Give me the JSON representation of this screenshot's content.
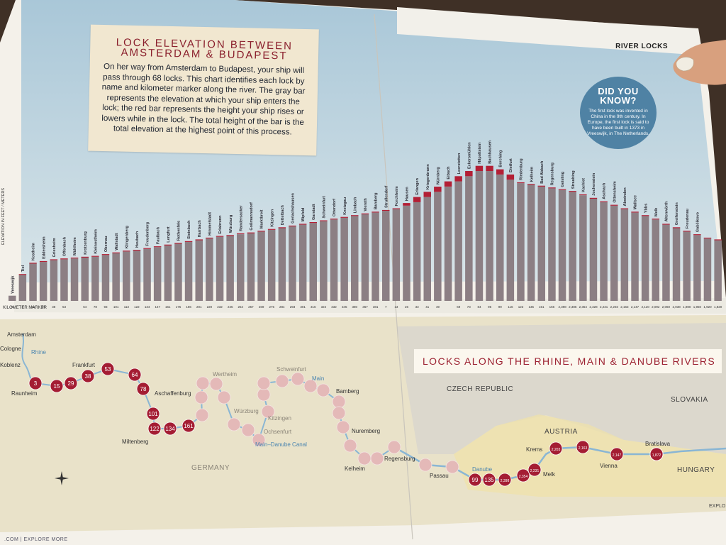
{
  "header": {
    "section_label": "RIVER LOCKS"
  },
  "intro": {
    "title": "LOCK ELEVATION BETWEEN AMSTERDAM & BUDAPEST",
    "body": "On her way from Amsterdam to Budapest, your ship will pass through 68 locks. This chart identifies each lock by name and kilometer marker along the river. The gray bar represents the elevation at which your ship enters the lock; the red bar represents the height your ship rises or lowers while in the lock. The total height of the bar is the total elevation at the highest point of this process."
  },
  "did_you_know": {
    "title": "DID YOU KNOW?",
    "body": "The first lock was invented in China in the 9th century. In Europe, the first lock is said to have been built in 1373 in Vreeswijk, in The Netherlands."
  },
  "chart_data": {
    "type": "bar",
    "title": "LOCK ELEVATION BETWEEN AMSTERDAM & BUDAPEST",
    "ylabel": "ELEVATION IN FEET / METERS",
    "xlabel": "KILOMETER MARKER",
    "series": [
      {
        "name": "gray bar",
        "color": "#8c7f84"
      },
      {
        "name": "red bar",
        "color": "#b31f35"
      }
    ],
    "locks": [
      {
        "name": "Vreeswijk",
        "km": "70",
        "entry": 6,
        "lift": 0
      },
      {
        "name": "Tiel",
        "km": "3",
        "entry": 30,
        "lift": 1
      },
      {
        "name": "Kostheim",
        "km": "15",
        "entry": 43,
        "lift": 1
      },
      {
        "name": "Eddersheim",
        "km": "29",
        "entry": 45,
        "lift": 1
      },
      {
        "name": "Griesheim",
        "km": "38",
        "entry": 47,
        "lift": 1
      },
      {
        "name": "Offenbach",
        "km": "53",
        "entry": 48,
        "lift": 1
      },
      {
        "name": "Mühlheim",
        "km": "",
        "entry": 49,
        "lift": 1
      },
      {
        "name": "Krotzenburg",
        "km": "64",
        "entry": 50,
        "lift": 1
      },
      {
        "name": "Kleinostheim",
        "km": "78",
        "entry": 51,
        "lift": 1
      },
      {
        "name": "Obernau",
        "km": "93",
        "entry": 53,
        "lift": 1
      },
      {
        "name": "Wallstadt",
        "km": "101",
        "entry": 55,
        "lift": 1
      },
      {
        "name": "Klingenberg",
        "km": "113",
        "entry": 57,
        "lift": 1
      },
      {
        "name": "Heubach",
        "km": "122",
        "entry": 58,
        "lift": 1
      },
      {
        "name": "Freudenberg",
        "km": "134",
        "entry": 60,
        "lift": 1
      },
      {
        "name": "Faulbach",
        "km": "147",
        "entry": 62,
        "lift": 1
      },
      {
        "name": "Lengfurt",
        "km": "161",
        "entry": 64,
        "lift": 1
      },
      {
        "name": "Rothenfels",
        "km": "175",
        "entry": 66,
        "lift": 1
      },
      {
        "name": "Steinbach",
        "km": "186",
        "entry": 68,
        "lift": 1
      },
      {
        "name": "Harrbach",
        "km": "201",
        "entry": 70,
        "lift": 1
      },
      {
        "name": "Himmelstadt",
        "km": "220",
        "entry": 72,
        "lift": 1
      },
      {
        "name": "Erlabrunn",
        "km": "232",
        "entry": 74,
        "lift": 1
      },
      {
        "name": "Würzburg",
        "km": "245",
        "entry": 75,
        "lift": 1
      },
      {
        "name": "Randersacker",
        "km": "254",
        "entry": 77,
        "lift": 1
      },
      {
        "name": "Goßmannsdorf",
        "km": "257",
        "entry": 78,
        "lift": 1
      },
      {
        "name": "Marktbreit",
        "km": "269",
        "entry": 80,
        "lift": 1
      },
      {
        "name": "Kitzingen",
        "km": "275",
        "entry": 82,
        "lift": 1
      },
      {
        "name": "Dettelbach",
        "km": "284",
        "entry": 84,
        "lift": 1
      },
      {
        "name": "Gerlachshausen",
        "km": "293",
        "entry": 86,
        "lift": 1
      },
      {
        "name": "Wipfeld",
        "km": "301",
        "entry": 88,
        "lift": 1
      },
      {
        "name": "Garstadt",
        "km": "316",
        "entry": 90,
        "lift": 1
      },
      {
        "name": "Schweinfurt",
        "km": "324",
        "entry": 92,
        "lift": 1
      },
      {
        "name": "Ottendorf",
        "km": "332",
        "entry": 94,
        "lift": 1
      },
      {
        "name": "Knetzgau",
        "km": "345",
        "entry": 96,
        "lift": 1
      },
      {
        "name": "Limbach",
        "km": "380",
        "entry": 98,
        "lift": 1
      },
      {
        "name": "Viereth",
        "km": "367",
        "entry": 100,
        "lift": 1
      },
      {
        "name": "Bamberg",
        "km": "381",
        "entry": 102,
        "lift": 1
      },
      {
        "name": "Strullendorf",
        "km": "7",
        "entry": 104,
        "lift": 1
      },
      {
        "name": "Forchheim",
        "km": "13",
        "entry": 106,
        "lift": 1
      },
      {
        "name": "Hausen",
        "km": "26",
        "entry": 110,
        "lift": 3
      },
      {
        "name": "Erlangen",
        "km": "33",
        "entry": 114,
        "lift": 6
      },
      {
        "name": "Kriegenbrunn",
        "km": "41",
        "entry": 120,
        "lift": 6
      },
      {
        "name": "Nürnberg",
        "km": "49",
        "entry": 126,
        "lift": 6
      },
      {
        "name": "Eibach",
        "km": "",
        "entry": 132,
        "lift": 6
      },
      {
        "name": "Leerstetten",
        "km": "69",
        "entry": 138,
        "lift": 6
      },
      {
        "name": "Eckersmühlen",
        "km": "73",
        "entry": 144,
        "lift": 6
      },
      {
        "name": "Hilpoltstein",
        "km": "84",
        "entry": 150,
        "lift": 6
      },
      {
        "name": "Bachhausen",
        "km": "95",
        "entry": 150,
        "lift": 6
      },
      {
        "name": "Berching",
        "km": "99",
        "entry": 146,
        "lift": 6
      },
      {
        "name": "Dietfurt",
        "km": "116",
        "entry": 140,
        "lift": 6
      },
      {
        "name": "Riedenburg",
        "km": "123",
        "entry": 136,
        "lift": 1
      },
      {
        "name": "Kelheim",
        "km": "135",
        "entry": 134,
        "lift": 1
      },
      {
        "name": "Bad Abbach",
        "km": "151",
        "entry": 132,
        "lift": 1
      },
      {
        "name": "Regensburg",
        "km": "166",
        "entry": 130,
        "lift": 1
      },
      {
        "name": "Geisling",
        "km": "2,398",
        "entry": 128,
        "lift": 1
      },
      {
        "name": "Straubing",
        "km": "2,385",
        "entry": 126,
        "lift": 1
      },
      {
        "name": "Kachlet",
        "km": "2,354",
        "entry": 122,
        "lift": 1
      },
      {
        "name": "Jochenstein",
        "km": "2,328",
        "entry": 118,
        "lift": 1
      },
      {
        "name": "Aschach",
        "km": "2,231",
        "entry": 114,
        "lift": 1
      },
      {
        "name": "Ottensheim",
        "km": "2,203",
        "entry": 110,
        "lift": 1
      },
      {
        "name": "Abwinden",
        "km": "2,163",
        "entry": 106,
        "lift": 1
      },
      {
        "name": "Wallsee",
        "km": "2,147",
        "entry": 102,
        "lift": 1
      },
      {
        "name": "Ybbs",
        "km": "2,120",
        "entry": 98,
        "lift": 1
      },
      {
        "name": "Melk",
        "km": "2,092",
        "entry": 94,
        "lift": 1
      },
      {
        "name": "Altenwörth",
        "km": "2,060",
        "entry": 88,
        "lift": 1
      },
      {
        "name": "Greifenstein",
        "km": "2,038",
        "entry": 84,
        "lift": 1
      },
      {
        "name": "Freudenau",
        "km": "1,980",
        "entry": 80,
        "lift": 1
      },
      {
        "name": "Gabčíkovo",
        "km": "1,950",
        "entry": 76,
        "lift": 1
      },
      {
        "name": "",
        "km": "1,920",
        "entry": 72,
        "lift": 1
      },
      {
        "name": "",
        "km": "1,820",
        "entry": 70,
        "lift": 1
      }
    ]
  },
  "map": {
    "banner": "LOCKS ALONG THE RHINE, MAIN & DANUBE RIVERS",
    "countries": [
      "CZECH REPUBLIC",
      "AUSTRIA",
      "SLOVAKIA",
      "GERMANY",
      "HUNGARY"
    ],
    "rivers": [
      "Rhine",
      "Main",
      "Main–Danube Canal",
      "Danube"
    ],
    "cities": [
      "Amsterdam",
      "Cologne",
      "Koblenz",
      "Raunheim",
      "Frankfurt",
      "Aschaffenburg",
      "Miltenberg",
      "Wertheim",
      "Würzburg",
      "Kitzingen",
      "Ochsenfurt",
      "Schweinfurt",
      "Bamberg",
      "Nuremberg",
      "Kelheim",
      "Regensburg",
      "Passau",
      "Krems",
      "Melk",
      "Vienna",
      "Bratislava"
    ],
    "markers": [
      "3",
      "15",
      "29",
      "38",
      "53",
      "64",
      "78",
      "101",
      "122",
      "134",
      "161",
      "",
      "",
      "",
      "",
      "",
      "",
      "",
      "",
      "",
      "",
      "",
      "",
      "",
      "",
      "",
      "",
      "",
      "",
      "",
      "",
      "",
      "",
      "",
      "",
      "99",
      "135",
      "2,398",
      "2,354",
      "2,231",
      "2,203",
      "2,163",
      "2,147",
      "2,120",
      "2,092",
      "2,060",
      "1,980",
      "1,950",
      "1,920",
      "1,872"
    ]
  },
  "footer": {
    "left": ".COM | EXPLORE MORE",
    "right": "EXPLO"
  }
}
